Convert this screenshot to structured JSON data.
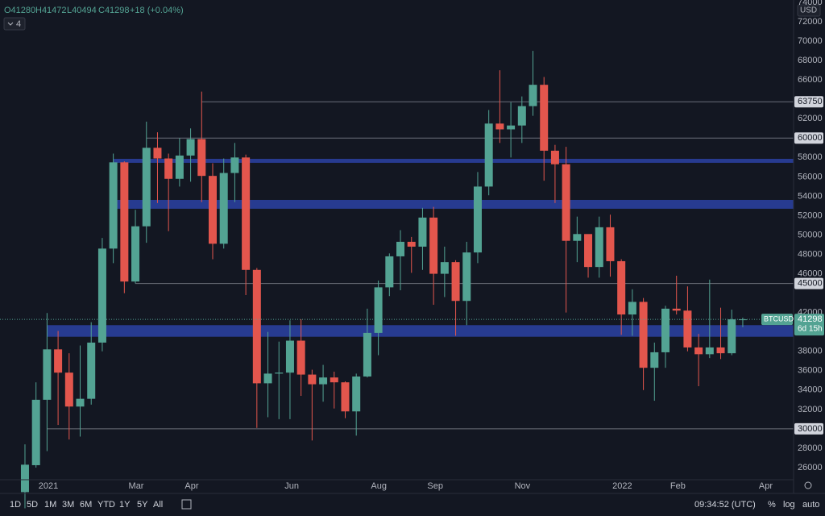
{
  "header": {
    "ohlc": [
      "O41280",
      "H41472",
      "L40494",
      "C41298"
    ],
    "change": "+18 (+0.04%)",
    "indicators": "4",
    "currency": "USD"
  },
  "toolbar": {
    "ranges": [
      "1D",
      "5D",
      "1M",
      "3M",
      "6M",
      "YTD",
      "1Y",
      "5Y",
      "All"
    ],
    "clock": "09:34:52 (UTC)",
    "percent": "%",
    "log": "log",
    "auto": "auto"
  },
  "chart_data": {
    "type": "candlestick",
    "symbol": "BTCUSD",
    "countdown": "6d 15h",
    "up_color": "#53a393",
    "down_color": "#e3564d",
    "zone_color": "#2a3f9c",
    "level_color": "#6b6f7a",
    "x": [
      0,
      1,
      2,
      3,
      4,
      5,
      6,
      7,
      8,
      9,
      10,
      11,
      12,
      13,
      14,
      15,
      16,
      17,
      18,
      19,
      20,
      21,
      22,
      23,
      24,
      25,
      26,
      27,
      28,
      29,
      30,
      31,
      32,
      33,
      34,
      35,
      36,
      37,
      38,
      39,
      40,
      41,
      42,
      43,
      44,
      45,
      46,
      47,
      48,
      49,
      50,
      51,
      52,
      53,
      54,
      55,
      56,
      57,
      58,
      59,
      60,
      61,
      62,
      63,
      64,
      65
    ],
    "open": [
      23470,
      26250,
      33000,
      38200,
      35800,
      32300,
      33100,
      38900,
      48600,
      57500,
      45200,
      50900,
      59000,
      57900,
      55800,
      58200,
      59900,
      56100,
      49100,
      56400,
      58000,
      46400,
      34700,
      35700,
      35800,
      39100,
      35600,
      34600,
      35300,
      34800,
      31800,
      35400,
      39900,
      44600,
      47800,
      49300,
      48800,
      51800,
      46000,
      47200,
      43200,
      48200,
      55000,
      61500,
      60900,
      61300,
      63300,
      65500,
      58700,
      57300,
      49400,
      50100,
      46700,
      50800,
      47300,
      41800,
      43100,
      36300,
      37900,
      42400,
      42200,
      38400,
      37700,
      38400,
      37800,
      41280
    ],
    "high": [
      28400,
      34800,
      41950,
      40100,
      37800,
      38600,
      41000,
      49700,
      58400,
      57600,
      52600,
      61700,
      60600,
      58400,
      60000,
      61000,
      64800,
      57400,
      57900,
      59500,
      58300,
      46600,
      40000,
      39000,
      41200,
      41300,
      36100,
      36600,
      35900,
      34900,
      35700,
      42400,
      45300,
      48100,
      50500,
      49800,
      52800,
      52900,
      48800,
      47400,
      49300,
      56500,
      62900,
      67000,
      63700,
      64300,
      69000,
      66300,
      59300,
      59100,
      51900,
      50000,
      51900,
      52100,
      47500,
      44400,
      43500,
      38900,
      42700,
      45800,
      44700,
      39800,
      45400,
      42500,
      42300,
      41472
    ],
    "low": [
      21800,
      26000,
      27700,
      30400,
      28900,
      29200,
      32500,
      38000,
      47100,
      44000,
      45000,
      49200,
      53300,
      50400,
      55000,
      55500,
      53400,
      47500,
      48600,
      53400,
      43800,
      30100,
      31200,
      31000,
      31000,
      33400,
      28800,
      32800,
      32100,
      31100,
      29300,
      35300,
      37600,
      43700,
      44300,
      46100,
      46400,
      42800,
      43600,
      39600,
      40700,
      47100,
      54100,
      59500,
      58000,
      59500,
      62300,
      55600,
      53300,
      42000,
      47200,
      45600,
      45600,
      45700,
      39700,
      39600,
      34000,
      32900,
      36300,
      41800,
      38000,
      34400,
      37300,
      37200,
      37600,
      40494
    ],
    "close": [
      26300,
      33000,
      38200,
      35800,
      32300,
      33100,
      38900,
      48600,
      57500,
      45200,
      50900,
      59000,
      57900,
      55800,
      58200,
      59900,
      56100,
      49100,
      56400,
      58000,
      46400,
      34700,
      35700,
      35800,
      39100,
      35600,
      34600,
      35300,
      34800,
      31800,
      35400,
      39900,
      44600,
      47800,
      49300,
      48800,
      51800,
      46000,
      47200,
      43200,
      48200,
      55000,
      61500,
      60900,
      61300,
      63300,
      65500,
      58700,
      57300,
      49400,
      50100,
      46700,
      50800,
      47300,
      41800,
      43100,
      36300,
      37900,
      42400,
      42200,
      38400,
      37700,
      38400,
      37800,
      41300,
      41298
    ],
    "xlim": [
      -2.26,
      69.6
    ],
    "ylim": [
      24750,
      74250
    ],
    "xticks": [
      {
        "value": 2.12,
        "label": "2021"
      },
      {
        "value": 10.07,
        "label": "Mar"
      },
      {
        "value": 15.1,
        "label": "Apr"
      },
      {
        "value": 24.16,
        "label": "Jun"
      },
      {
        "value": 32.04,
        "label": "Aug"
      },
      {
        "value": 37.15,
        "label": "Sep"
      },
      {
        "value": 45.04,
        "label": "Nov"
      },
      {
        "value": 54.09,
        "label": "2022"
      },
      {
        "value": 59.12,
        "label": "Feb"
      },
      {
        "value": 67.08,
        "label": "Apr"
      }
    ],
    "yticks": [
      26000,
      28000,
      32000,
      34000,
      36000,
      38000,
      42000,
      46000,
      48000,
      50000,
      52000,
      54000,
      56000,
      58000,
      62000,
      66000,
      68000,
      70000,
      72000,
      74000
    ],
    "levels": [
      {
        "value": 63750,
        "from": 16
      },
      {
        "value": 60000,
        "from": 11
      },
      {
        "value": 45000,
        "from": 10
      },
      {
        "value": 30000,
        "from": 2
      }
    ],
    "zones": [
      {
        "range": [
          39500,
          40700
        ],
        "from": 2
      },
      {
        "range": [
          52710,
          53620
        ],
        "from": 8
      },
      {
        "range": [
          57450,
          57860
        ],
        "from": 8
      }
    ],
    "grid": false
  }
}
